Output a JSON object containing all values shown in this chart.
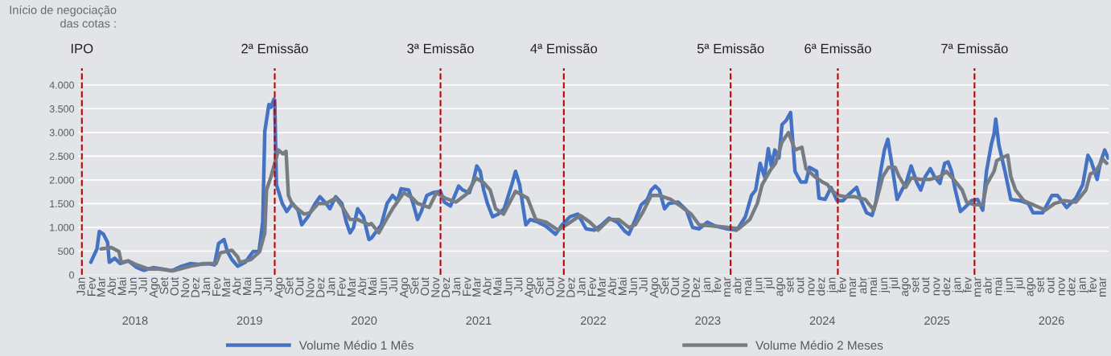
{
  "chart_data": {
    "type": "line",
    "annotations": [
      "Início de negociação\ndas cotas :",
      "2018",
      "2019",
      "2020",
      "2021",
      "2022",
      "2023",
      "2024",
      "2025",
      "2026"
    ],
    "xlim": [
      "2017-12-20",
      "2026-03-18"
    ],
    "xticks": [
      {
        "value": "2018-01-01",
        "label": "Jan"
      },
      {
        "value": "2018-02-01",
        "label": "Fev"
      },
      {
        "value": "2018-03-01",
        "label": "Mar"
      },
      {
        "value": "2018-04-01",
        "label": "Abr"
      },
      {
        "value": "2018-05-01",
        "label": "Mai"
      },
      {
        "value": "2018-06-01",
        "label": "Jun"
      },
      {
        "value": "2018-07-01",
        "label": "Jul"
      },
      {
        "value": "2018-08-01",
        "label": "Ago"
      },
      {
        "value": "2018-09-01",
        "label": "Set"
      },
      {
        "value": "2018-10-01",
        "label": "Out"
      },
      {
        "value": "2018-11-01",
        "label": "Nov"
      },
      {
        "value": "2018-12-01",
        "label": "Dez"
      },
      {
        "value": "2019-01-01",
        "label": "Jan"
      },
      {
        "value": "2019-02-01",
        "label": "Fev"
      },
      {
        "value": "2019-03-01",
        "label": "Mar"
      },
      {
        "value": "2019-04-01",
        "label": "Abr"
      },
      {
        "value": "2019-05-01",
        "label": "Mai"
      },
      {
        "value": "2019-06-01",
        "label": "Jun"
      },
      {
        "value": "2019-07-01",
        "label": "Jul"
      },
      {
        "value": "2019-08-01",
        "label": "Ago"
      },
      {
        "value": "2019-09-01",
        "label": "Set"
      },
      {
        "value": "2019-10-01",
        "label": "Out"
      },
      {
        "value": "2019-11-01",
        "label": "Nov"
      },
      {
        "value": "2019-12-01",
        "label": "Dez"
      },
      {
        "value": "2020-01-01",
        "label": "Jan"
      },
      {
        "value": "2020-02-01",
        "label": "Fev"
      },
      {
        "value": "2020-03-01",
        "label": "Mar"
      },
      {
        "value": "2020-04-01",
        "label": "Abr"
      },
      {
        "value": "2020-05-01",
        "label": "Mai"
      },
      {
        "value": "2020-06-01",
        "label": "Jun"
      },
      {
        "value": "2020-07-01",
        "label": "Jul"
      },
      {
        "value": "2020-08-01",
        "label": "Ago"
      },
      {
        "value": "2020-09-01",
        "label": "Set"
      },
      {
        "value": "2020-10-01",
        "label": "Out"
      },
      {
        "value": "2020-11-01",
        "label": "Nov"
      },
      {
        "value": "2020-12-01",
        "label": "Dez"
      },
      {
        "value": "2021-01-01",
        "label": "Jan"
      },
      {
        "value": "2021-02-01",
        "label": "Fev"
      },
      {
        "value": "2021-03-01",
        "label": "Mar"
      },
      {
        "value": "2021-04-01",
        "label": "Abr"
      },
      {
        "value": "2021-05-01",
        "label": "Mai"
      },
      {
        "value": "2021-06-01",
        "label": "Jun"
      },
      {
        "value": "2021-07-01",
        "label": "Jul"
      },
      {
        "value": "2021-08-01",
        "label": "Ago"
      },
      {
        "value": "2021-09-01",
        "label": "Set"
      },
      {
        "value": "2021-10-01",
        "label": "Out"
      },
      {
        "value": "2021-11-01",
        "label": "Nov"
      },
      {
        "value": "2021-12-01",
        "label": "Dez"
      },
      {
        "value": "2022-01-01",
        "label": "Jan"
      },
      {
        "value": "2022-02-01",
        "label": "Fev"
      },
      {
        "value": "2022-03-01",
        "label": "Mar"
      },
      {
        "value": "2022-04-01",
        "label": "Abr"
      },
      {
        "value": "2022-05-01",
        "label": "Mai"
      },
      {
        "value": "2022-06-01",
        "label": "Jun"
      },
      {
        "value": "2022-07-01",
        "label": "Jul"
      },
      {
        "value": "2022-08-01",
        "label": "Ago"
      },
      {
        "value": "2022-09-01",
        "label": "Set"
      },
      {
        "value": "2022-10-01",
        "label": "Out"
      },
      {
        "value": "2022-11-01",
        "label": "Nov"
      },
      {
        "value": "2022-12-01",
        "label": "Dez"
      },
      {
        "value": "2023-01-01",
        "label": "jan"
      },
      {
        "value": "2023-02-01",
        "label": "fev"
      },
      {
        "value": "2023-03-01",
        "label": "mar"
      },
      {
        "value": "2023-04-01",
        "label": "abr"
      },
      {
        "value": "2023-05-01",
        "label": "mai"
      },
      {
        "value": "2023-06-01",
        "label": "jun"
      },
      {
        "value": "2023-07-01",
        "label": "jul"
      },
      {
        "value": "2023-08-01",
        "label": "ago"
      },
      {
        "value": "2023-09-01",
        "label": "set"
      },
      {
        "value": "2023-10-01",
        "label": "out"
      },
      {
        "value": "2023-11-01",
        "label": "nov"
      },
      {
        "value": "2023-12-01",
        "label": "dez"
      },
      {
        "value": "2024-01-01",
        "label": "jan"
      },
      {
        "value": "2024-02-01",
        "label": "fev"
      },
      {
        "value": "2024-03-01",
        "label": "mar"
      },
      {
        "value": "2024-04-01",
        "label": "abr"
      },
      {
        "value": "2024-05-01",
        "label": "mai"
      },
      {
        "value": "2024-06-01",
        "label": "jun"
      },
      {
        "value": "2024-07-01",
        "label": "jul"
      },
      {
        "value": "2024-08-01",
        "label": "ago"
      },
      {
        "value": "2024-09-01",
        "label": "set"
      },
      {
        "value": "2024-10-01",
        "label": "out"
      },
      {
        "value": "2024-11-01",
        "label": "nov"
      },
      {
        "value": "2024-12-01",
        "label": "dez"
      },
      {
        "value": "2025-01-01",
        "label": "jan"
      },
      {
        "value": "2025-02-01",
        "label": "fev"
      },
      {
        "value": "2025-03-01",
        "label": "mar"
      },
      {
        "value": "2025-04-01",
        "label": "abr"
      },
      {
        "value": "2025-05-01",
        "label": "mai"
      },
      {
        "value": "2025-06-01",
        "label": "jun"
      },
      {
        "value": "2025-07-01",
        "label": "jul"
      },
      {
        "value": "2025-08-01",
        "label": "ago"
      },
      {
        "value": "2025-09-01",
        "label": "set"
      },
      {
        "value": "2025-10-01",
        "label": "out"
      },
      {
        "value": "2025-11-01",
        "label": "nov"
      },
      {
        "value": "2025-12-01",
        "label": "dez"
      },
      {
        "value": "2026-01-01",
        "label": "jan"
      },
      {
        "value": "2026-02-01",
        "label": "fev"
      },
      {
        "value": "2026-03-01",
        "label": "mar"
      }
    ],
    "ylim": [
      0,
      4350
    ],
    "yticks": [
      {
        "value": 0,
        "label": "0"
      },
      {
        "value": 500,
        "label": "500"
      },
      {
        "value": 1000,
        "label": "1.000"
      },
      {
        "value": 1500,
        "label": "1.500"
      },
      {
        "value": 2000,
        "label": "2.000"
      },
      {
        "value": 2500,
        "label": "2.500"
      },
      {
        "value": 3000,
        "label": "3.000"
      },
      {
        "value": 3500,
        "label": "3.500"
      },
      {
        "value": 4000,
        "label": "4.000"
      }
    ],
    "grid": "y",
    "legend": "bottom",
    "marker": "none",
    "line_style": "solid",
    "ref_lines": [
      {
        "axis": "x",
        "value": "2018-01-01",
        "label": "IPO",
        "color": "#c00000",
        "line_style": "dashed"
      },
      {
        "axis": "x",
        "value": "2019-07-18",
        "label": "2ª Emissão",
        "color": "#c00000",
        "line_style": "dashed"
      },
      {
        "axis": "x",
        "value": "2020-11-13",
        "label": "3ª Emissão",
        "color": "#c00000",
        "line_style": "dashed"
      },
      {
        "axis": "x",
        "value": "2021-11-08",
        "label": "4ª Emissão",
        "color": "#c00000",
        "line_style": "dashed"
      },
      {
        "axis": "x",
        "value": "2023-03-10",
        "label": "5ª Emissão",
        "color": "#c00000",
        "line_style": "dashed"
      },
      {
        "axis": "x",
        "value": "2024-01-17",
        "label": "6ª Emissão",
        "color": "#c00000",
        "line_style": "dashed"
      },
      {
        "axis": "x",
        "value": "2025-02-19",
        "label": "7ª Emissão",
        "color": "#c00000",
        "line_style": "dashed"
      }
    ],
    "series": [
      {
        "name": "Volume Médio 1 Mês",
        "color": "#4472c4",
        "x": [
          "2018-01-27",
          "2018-02-14",
          "2018-02-21",
          "2018-03-05",
          "2018-03-17",
          "2018-03-22",
          "2018-04-07",
          "2018-04-23",
          "2018-05-17",
          "2018-06-11",
          "2018-07-01",
          "2018-07-28",
          "2018-08-23",
          "2018-09-20",
          "2018-10-19",
          "2018-11-13",
          "2018-12-07",
          "2019-01-07",
          "2019-01-23",
          "2019-02-04",
          "2019-02-20",
          "2019-03-02",
          "2019-03-15",
          "2019-04-01",
          "2019-04-23",
          "2019-05-16",
          "2019-06-02",
          "2019-06-13",
          "2019-06-19",
          "2019-07-01",
          "2019-07-07",
          "2019-07-16",
          "2019-07-18",
          "2019-07-23",
          "2019-08-09",
          "2019-08-22",
          "2019-09-08",
          "2019-09-24",
          "2019-10-05",
          "2019-10-23",
          "2019-11-11",
          "2019-11-27",
          "2019-12-15",
          "2019-12-26",
          "2020-01-12",
          "2020-01-30",
          "2020-02-12",
          "2020-02-23",
          "2020-03-04",
          "2020-03-16",
          "2020-04-02",
          "2020-04-18",
          "2020-04-25",
          "2020-05-24",
          "2020-06-10",
          "2020-06-26",
          "2020-07-10",
          "2020-07-21",
          "2020-08-12",
          "2020-08-25",
          "2020-09-07",
          "2020-09-18",
          "2020-10-04",
          "2020-10-22",
          "2020-11-13",
          "2020-11-24",
          "2020-12-12",
          "2021-01-05",
          "2021-01-17",
          "2021-02-05",
          "2021-02-16",
          "2021-02-27",
          "2021-03-09",
          "2021-03-19",
          "2021-03-30",
          "2021-04-14",
          "2021-04-30",
          "2021-05-18",
          "2021-06-09",
          "2021-06-20",
          "2021-07-02",
          "2021-07-20",
          "2021-08-02",
          "2021-08-25",
          "2021-09-17",
          "2021-10-15",
          "2021-11-03",
          "2021-11-26",
          "2021-12-19",
          "2022-01-12",
          "2022-02-05",
          "2022-02-27",
          "2022-03-20",
          "2022-04-13",
          "2022-05-06",
          "2022-05-17",
          "2022-06-05",
          "2022-06-22",
          "2022-07-10",
          "2022-07-21",
          "2022-08-02",
          "2022-08-14",
          "2022-08-29",
          "2022-09-11",
          "2022-10-08",
          "2022-11-01",
          "2022-11-19",
          "2022-12-08",
          "2023-01-01",
          "2023-01-25",
          "2023-02-28",
          "2023-03-27",
          "2023-04-02",
          "2023-04-22",
          "2023-05-10",
          "2023-05-22",
          "2023-06-04",
          "2023-06-17",
          "2023-06-28",
          "2023-07-07",
          "2023-07-17",
          "2023-07-29",
          "2023-08-07",
          "2023-08-19",
          "2023-09-01",
          "2023-09-14",
          "2023-10-01",
          "2023-10-16",
          "2023-10-26",
          "2023-11-16",
          "2023-11-23",
          "2023-12-11",
          "2023-12-28",
          "2024-01-15",
          "2024-02-01",
          "2024-02-15",
          "2024-02-28",
          "2024-03-12",
          "2024-03-22",
          "2024-04-10",
          "2024-04-26",
          "2024-05-07",
          "2024-05-21",
          "2024-06-01",
          "2024-06-11",
          "2024-06-21",
          "2024-07-08",
          "2024-07-22",
          "2024-08-04",
          "2024-08-18",
          "2024-09-03",
          "2024-09-15",
          "2024-09-28",
          "2024-10-13",
          "2024-10-25",
          "2024-11-10",
          "2024-11-24",
          "2024-12-04",
          "2024-12-14",
          "2024-12-25",
          "2025-01-09",
          "2025-01-22",
          "2025-02-10",
          "2025-02-28",
          "2025-03-15",
          "2025-03-26",
          "2025-04-09",
          "2025-04-17",
          "2025-04-22",
          "2025-05-01",
          "2025-05-19",
          "2025-06-05",
          "2025-07-02",
          "2025-07-26",
          "2025-08-09",
          "2025-09-06",
          "2025-10-03",
          "2025-10-19",
          "2025-11-15",
          "2025-12-12",
          "2026-01-01",
          "2026-01-16",
          "2026-01-25",
          "2026-02-12",
          "2026-02-21",
          "2026-03-06",
          "2026-03-16"
        ],
        "values": [
          265,
          546,
          913,
          856,
          687,
          265,
          349,
          237,
          293,
          152,
          96,
          152,
          124,
          85,
          180,
          237,
          220,
          237,
          208,
          659,
          744,
          490,
          321,
          180,
          265,
          490,
          490,
          1110,
          3025,
          3589,
          3532,
          3701,
          3673,
          1899,
          1504,
          1335,
          1504,
          1363,
          1054,
          1223,
          1476,
          1645,
          1504,
          1392,
          1645,
          1504,
          1110,
          885,
          997,
          1392,
          1223,
          744,
          772,
          1054,
          1504,
          1673,
          1561,
          1814,
          1786,
          1504,
          1166,
          1335,
          1673,
          1730,
          1758,
          1532,
          1448,
          1870,
          1786,
          1730,
          1955,
          2293,
          2180,
          1786,
          1504,
          1223,
          1279,
          1392,
          1899,
          2180,
          1899,
          1054,
          1166,
          1110,
          1025,
          856,
          1054,
          1223,
          1279,
          969,
          941,
          1054,
          1194,
          1110,
          913,
          856,
          1166,
          1476,
          1589,
          1786,
          1870,
          1786,
          1392,
          1504,
          1532,
          1363,
          997,
          969,
          1110,
          1025,
          969,
          941,
          997,
          1223,
          1673,
          1786,
          2349,
          2068,
          2659,
          2293,
          2631,
          2462,
          3166,
          3251,
          3420,
          2180,
          1955,
          1955,
          2265,
          2180,
          1617,
          1589,
          1842,
          1561,
          1561,
          1673,
          1758,
          1842,
          1617,
          1307,
          1251,
          1532,
          2180,
          2631,
          2856,
          2406,
          1589,
          1786,
          1955,
          2293,
          1955,
          1786,
          2068,
          2237,
          2068,
          1927,
          2349,
          2378,
          2180,
          1786,
          1335,
          1420,
          1561,
          1589,
          1363,
          2180,
          2744,
          2969,
          3279,
          2744,
          2180,
          1589,
          1561,
          1504,
          1307,
          1307,
          1673,
          1673,
          1420,
          1617,
          1899,
          2518,
          2406,
          2011,
          2349,
          2631,
          2462
        ]
      },
      {
        "name": "Volume Médio 2 Meses",
        "color": "#757c83",
        "x": [
          "2018-02-26",
          "2018-03-28",
          "2018-04-19",
          "2018-04-26",
          "2018-05-17",
          "2018-06-11",
          "2018-07-13",
          "2018-08-14",
          "2018-09-25",
          "2018-11-13",
          "2018-12-23",
          "2019-01-28",
          "2019-02-09",
          "2019-03-15",
          "2019-04-01",
          "2019-04-07",
          "2019-05-09",
          "2019-06-04",
          "2019-06-19",
          "2019-06-24",
          "2019-07-07",
          "2019-07-29",
          "2019-08-11",
          "2019-08-20",
          "2019-08-27",
          "2019-09-08",
          "2019-10-12",
          "2019-10-29",
          "2019-11-22",
          "2019-12-15",
          "2020-01-12",
          "2020-01-30",
          "2020-02-23",
          "2020-03-16",
          "2020-04-18",
          "2020-04-25",
          "2020-05-17",
          "2020-06-10",
          "2020-06-26",
          "2020-07-29",
          "2020-08-23",
          "2020-09-07",
          "2020-10-11",
          "2020-11-01",
          "2020-11-26",
          "2020-12-28",
          "2021-01-28",
          "2021-02-25",
          "2021-03-21",
          "2021-04-07",
          "2021-04-23",
          "2021-05-16",
          "2021-06-20",
          "2021-07-25",
          "2021-08-18",
          "2021-09-17",
          "2021-10-22",
          "2021-11-10",
          "2021-12-26",
          "2022-01-23",
          "2022-02-16",
          "2022-03-20",
          "2022-04-18",
          "2022-05-17",
          "2022-06-05",
          "2022-06-28",
          "2022-07-21",
          "2022-08-14",
          "2022-09-16",
          "2022-10-15",
          "2022-11-15",
          "2022-12-08",
          "2023-01-25",
          "2023-03-08",
          "2023-04-02",
          "2023-05-05",
          "2023-05-27",
          "2023-06-10",
          "2023-07-04",
          "2023-07-19",
          "2023-08-07",
          "2023-08-26",
          "2023-09-14",
          "2023-10-04",
          "2023-10-16",
          "2023-11-11",
          "2023-12-03",
          "2023-12-18",
          "2023-12-28",
          "2024-01-19",
          "2024-02-09",
          "2024-03-06",
          "2024-04-06",
          "2024-05-01",
          "2024-05-13",
          "2024-05-27",
          "2024-06-13",
          "2024-07-02",
          "2024-07-14",
          "2024-08-02",
          "2024-08-18",
          "2024-09-15",
          "2024-10-13",
          "2024-11-10",
          "2024-11-29",
          "2024-12-20",
          "2025-01-14",
          "2025-01-27",
          "2025-02-19",
          "2025-03-15",
          "2025-03-26",
          "2025-04-17",
          "2025-04-25",
          "2025-05-09",
          "2025-05-27",
          "2025-06-05",
          "2025-06-19",
          "2025-07-13",
          "2025-08-09",
          "2025-09-14",
          "2025-10-11",
          "2025-11-07",
          "2025-12-12",
          "2026-01-10",
          "2026-01-23",
          "2026-02-08",
          "2026-03-01",
          "2026-03-12"
        ],
        "values": [
          546,
          575,
          490,
          265,
          293,
          208,
          124,
          124,
          85,
          180,
          237,
          237,
          462,
          518,
          377,
          265,
          321,
          490,
          885,
          1786,
          2068,
          2631,
          2547,
          2603,
          1673,
          1476,
          1279,
          1307,
          1504,
          1504,
          1617,
          1448,
          1166,
          1166,
          1054,
          1082,
          885,
          1194,
          1392,
          1730,
          1617,
          1504,
          1420,
          1730,
          1617,
          1532,
          1701,
          2039,
          1927,
          1786,
          1392,
          1279,
          1758,
          1617,
          1166,
          1110,
          941,
          1025,
          1251,
          1110,
          941,
          1166,
          1166,
          997,
          1054,
          1335,
          1673,
          1673,
          1589,
          1448,
          1279,
          1054,
          1025,
          997,
          969,
          1166,
          1504,
          1899,
          2208,
          2349,
          2800,
          2997,
          2631,
          2687,
          2237,
          2068,
          1955,
          1899,
          1786,
          1673,
          1645,
          1645,
          1589,
          1363,
          1673,
          2068,
          2265,
          2265,
          2068,
          1842,
          2039,
          2011,
          2011,
          2068,
          2180,
          2011,
          1786,
          1532,
          1476,
          1476,
          1899,
          2180,
          2406,
          2462,
          2518,
          2068,
          1786,
          1561,
          1476,
          1363,
          1504,
          1561,
          1532,
          1786,
          2124,
          2180,
          2434,
          2349
        ]
      }
    ]
  }
}
